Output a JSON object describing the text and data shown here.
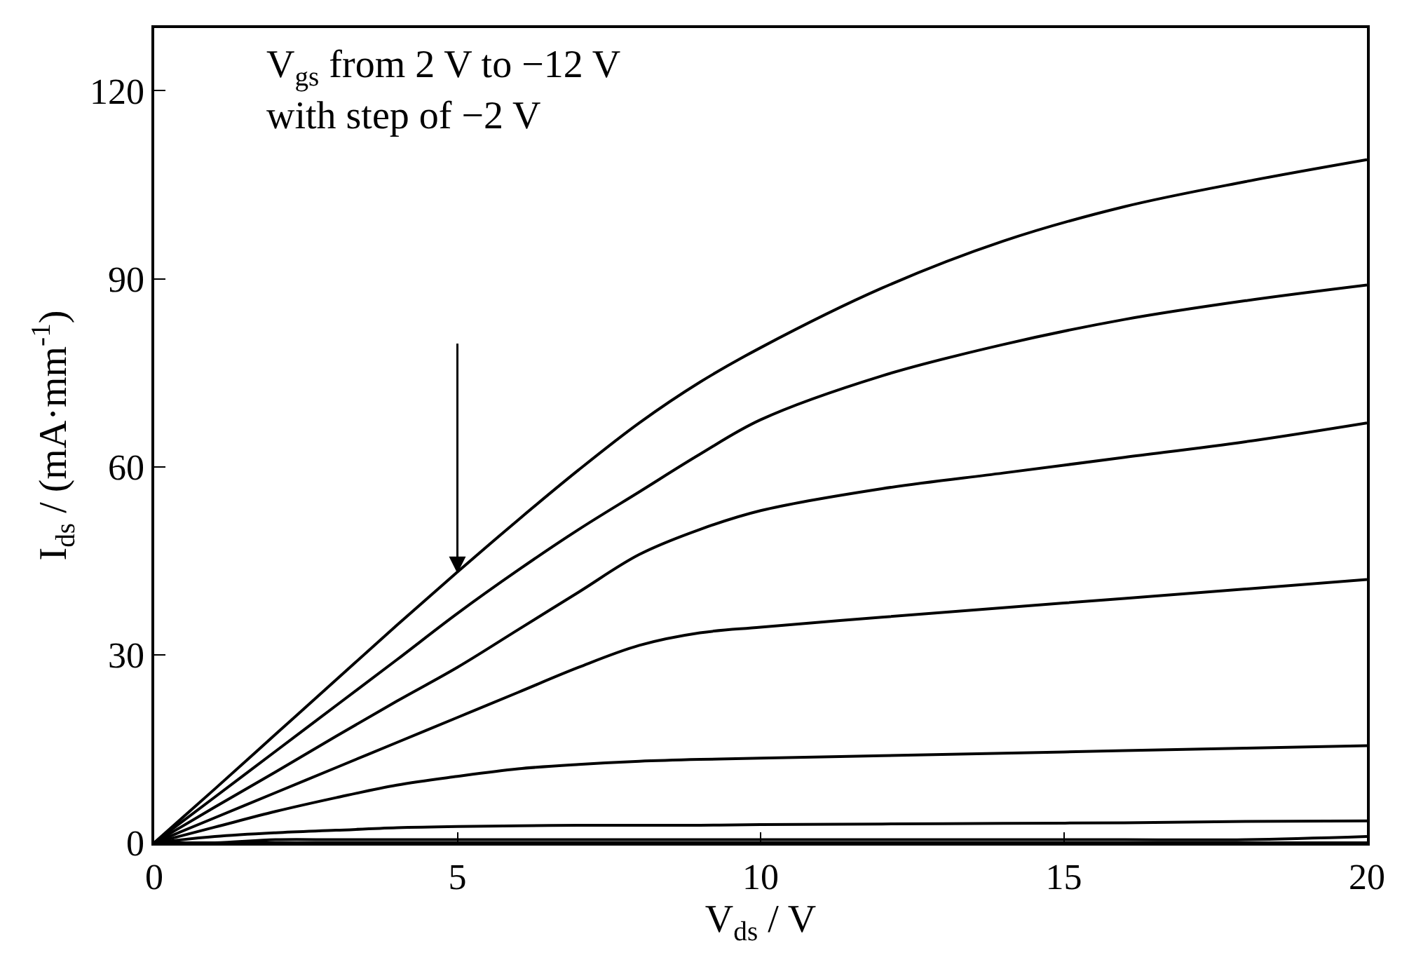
{
  "chart_data": {
    "type": "line",
    "xlabel": "V$_{ds}$ / V",
    "ylabel": "I$_{ds}$ / (mA·mm$^{-1}$)",
    "annotations": [
      "V$_{gs}$ from 2 V to −12 V\nwith step of −2 V"
    ],
    "x": [
      0,
      1,
      2,
      3,
      4,
      5,
      6,
      7,
      8,
      9,
      10,
      12,
      14,
      16,
      18,
      20
    ],
    "series": [
      {
        "color": "#000000",
        "values": [
          0,
          8.6,
          17.3,
          26,
          34.7,
          43.2,
          51.5,
          59.5,
          67,
          73.5,
          79,
          88.5,
          96,
          101.5,
          105.5,
          109
        ]
      },
      {
        "color": "#000000",
        "values": [
          0,
          7.3,
          14.6,
          21.9,
          29.2,
          36.6,
          43.5,
          50,
          56,
          62,
          67.5,
          74.5,
          79.5,
          83.5,
          86.5,
          89
        ]
      },
      {
        "color": "#000000",
        "values": [
          0,
          5.7,
          11.3,
          17,
          22.6,
          28,
          34,
          40,
          46,
          50,
          53,
          56.5,
          59,
          61.5,
          64,
          67
        ]
      },
      {
        "color": "#000000",
        "values": [
          0,
          4,
          8,
          12,
          16,
          20,
          24,
          28,
          31.5,
          33.5,
          34.4,
          36,
          37.5,
          39,
          40.5,
          42
        ]
      },
      {
        "color": "#000000",
        "values": [
          0,
          2.5,
          5,
          7.2,
          9.2,
          10.6,
          11.8,
          12.5,
          13,
          13.3,
          13.5,
          13.9,
          14.3,
          14.7,
          15.1,
          15.5
        ]
      },
      {
        "color": "#000000",
        "values": [
          0,
          1,
          1.6,
          2,
          2.4,
          2.6,
          2.7,
          2.8,
          2.8,
          2.8,
          2.9,
          3,
          3.1,
          3.2,
          3.4,
          3.5
        ]
      },
      {
        "color": "#000000",
        "values": [
          0,
          0,
          0.5,
          0.5,
          0.5,
          0.5,
          0.5,
          0.5,
          0.5,
          0.5,
          0.5,
          0.5,
          0.5,
          0.5,
          0.5,
          1
        ]
      },
      {
        "color": "#000000",
        "values": [
          0,
          0,
          0,
          0,
          0,
          0,
          0,
          0,
          0,
          0,
          0,
          0,
          0,
          0,
          0,
          0
        ]
      }
    ],
    "xlim": [
      0,
      20
    ],
    "xticks": [
      0,
      5,
      10,
      15,
      20
    ],
    "ylim": [
      0,
      130
    ],
    "yticks": [
      0,
      30,
      60,
      90,
      120
    ],
    "marker": "none",
    "line_style": "solid"
  }
}
